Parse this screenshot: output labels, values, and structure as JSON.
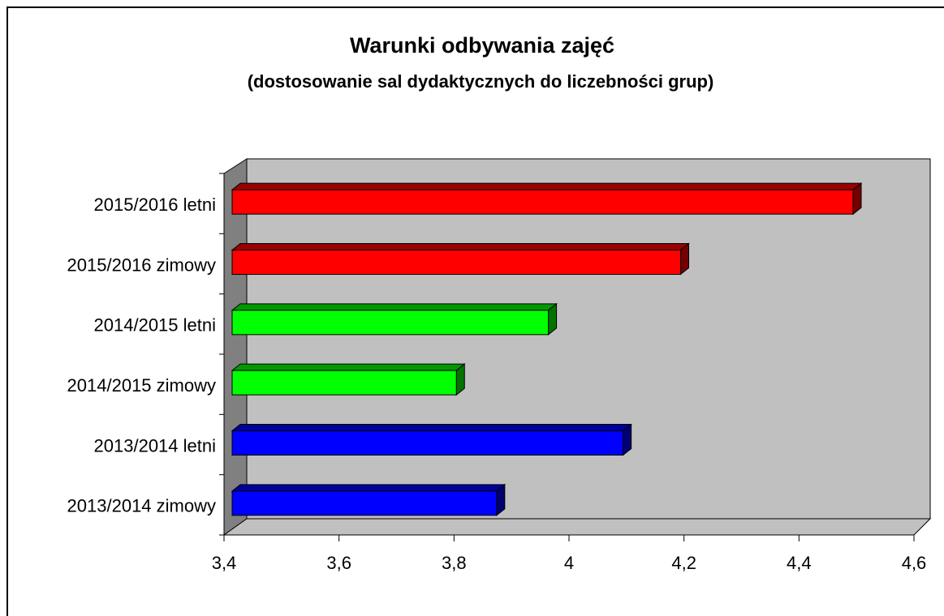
{
  "chart_data": {
    "type": "bar3d_horizontal",
    "title": "Warunki odbywania zajęć",
    "subtitle": "(dostosowanie sal dydaktycznych do liczebności grup)",
    "categories": [
      "2015/2016 letni",
      "2015/2016 zimowy",
      "2014/2015 letni",
      "2014/2015 zimowy",
      "2013/2014 letni",
      "2013/2014 zimowy"
    ],
    "values": [
      4.48,
      4.18,
      3.95,
      3.79,
      4.08,
      3.86
    ],
    "colors": [
      "#ff0000",
      "#ff0000",
      "#00ff00",
      "#00ff00",
      "#0000ff",
      "#0000ff"
    ],
    "xlim": [
      3.4,
      4.6
    ],
    "xticks": [
      {
        "value": 3.4,
        "label": "3,4"
      },
      {
        "value": 3.6,
        "label": "3,6"
      },
      {
        "value": 3.8,
        "label": "3,8"
      },
      4,
      {
        "value": 4.2,
        "label": "4,2"
      },
      {
        "value": 4.4,
        "label": "4,4"
      },
      {
        "value": 4.6,
        "label": "4,6"
      }
    ]
  }
}
